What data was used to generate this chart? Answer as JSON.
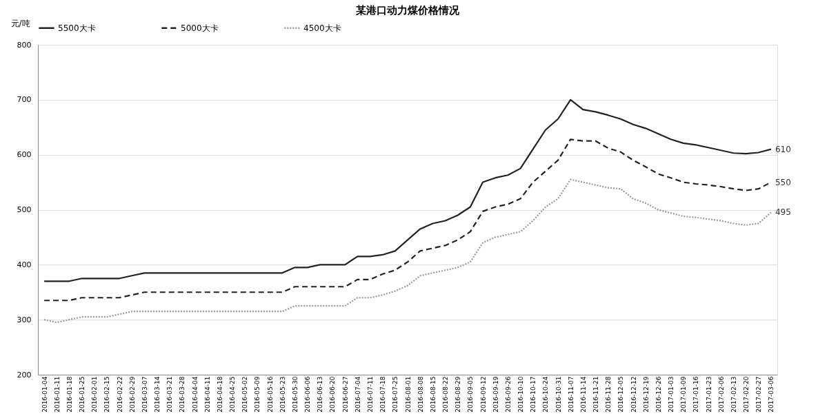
{
  "chart_data": {
    "type": "line",
    "title": "某港口动力煤价格情况",
    "ylabel": "元/吨",
    "categories": [
      "2016-01-04",
      "2016-01-11",
      "2016-01-18",
      "2016-01-25",
      "2016-02-01",
      "2016-02-15",
      "2016-02-22",
      "2016-02-29",
      "2016-03-07",
      "2016-03-14",
      "2016-03-21",
      "2016-03-28",
      "2016-04-04",
      "2016-04-11",
      "2016-04-18",
      "2016-04-25",
      "2016-05-02",
      "2016-05-09",
      "2016-05-16",
      "2016-05-23",
      "2016-05-30",
      "2016-06-06",
      "2016-06-13",
      "2016-06-20",
      "2016-06-27",
      "2016-07-04",
      "2016-07-11",
      "2016-07-18",
      "2016-07-25",
      "2016-08-01",
      "2016-08-08",
      "2016-08-15",
      "2016-08-22",
      "2016-08-29",
      "2016-09-05",
      "2016-09-12",
      "2016-09-19",
      "2016-09-26",
      "2016-10-10",
      "2016-10-17",
      "2016-10-24",
      "2016-10-31",
      "2016-11-07",
      "2016-11-14",
      "2016-11-21",
      "2016-11-28",
      "2016-12-05",
      "2016-12-12",
      "2016-12-19",
      "2016-12-26",
      "2017-01-03",
      "2017-01-09",
      "2017-01-16",
      "2017-01-23",
      "2017-02-06",
      "2017-02-13",
      "2017-02-20",
      "2017-02-27",
      "2017-03-06"
    ],
    "series": [
      {
        "name": "5500大卡",
        "color": "#222222",
        "line_style": "solid",
        "values": [
          370,
          370,
          370,
          375,
          375,
          375,
          375,
          380,
          385,
          385,
          385,
          385,
          385,
          385,
          385,
          385,
          385,
          385,
          385,
          385,
          395,
          395,
          400,
          400,
          400,
          415,
          415,
          418,
          425,
          445,
          465,
          475,
          480,
          490,
          505,
          550,
          558,
          563,
          575,
          610,
          645,
          665,
          700,
          682,
          678,
          672,
          665,
          655,
          648,
          638,
          628,
          621,
          618,
          613,
          608,
          603,
          602,
          604,
          610
        ]
      },
      {
        "name": "5000大卡",
        "color": "#222222",
        "line_style": "dashed",
        "values": [
          335,
          335,
          335,
          340,
          340,
          340,
          340,
          345,
          350,
          350,
          350,
          350,
          350,
          350,
          350,
          350,
          350,
          350,
          350,
          350,
          360,
          360,
          360,
          360,
          360,
          373,
          373,
          383,
          390,
          405,
          425,
          430,
          435,
          445,
          460,
          497,
          505,
          510,
          520,
          550,
          570,
          590,
          628,
          625,
          625,
          612,
          605,
          590,
          578,
          565,
          558,
          550,
          547,
          545,
          542,
          538,
          535,
          538,
          550
        ]
      },
      {
        "name": "4500大卡",
        "color": "#999999",
        "line_style": "dotted",
        "values": [
          300,
          295,
          300,
          305,
          305,
          305,
          310,
          315,
          315,
          315,
          315,
          315,
          315,
          315,
          315,
          315,
          315,
          315,
          315,
          315,
          325,
          325,
          325,
          325,
          325,
          340,
          340,
          345,
          352,
          362,
          380,
          385,
          390,
          395,
          405,
          440,
          450,
          455,
          460,
          480,
          505,
          520,
          555,
          550,
          545,
          540,
          538,
          520,
          512,
          500,
          494,
          488,
          486,
          483,
          480,
          475,
          472,
          475,
          495
        ]
      }
    ],
    "ylim": [
      200,
      800
    ],
    "yticks": [
      200,
      300,
      400,
      500,
      600,
      700,
      800
    ],
    "grid": "y",
    "legend": "top",
    "annotations": [
      {
        "text": "610",
        "x": "2017-03-06",
        "y": 610
      },
      {
        "text": "550",
        "x": "2017-03-06",
        "y": 550
      },
      {
        "text": "495",
        "x": "2017-03-06",
        "y": 495
      }
    ]
  }
}
